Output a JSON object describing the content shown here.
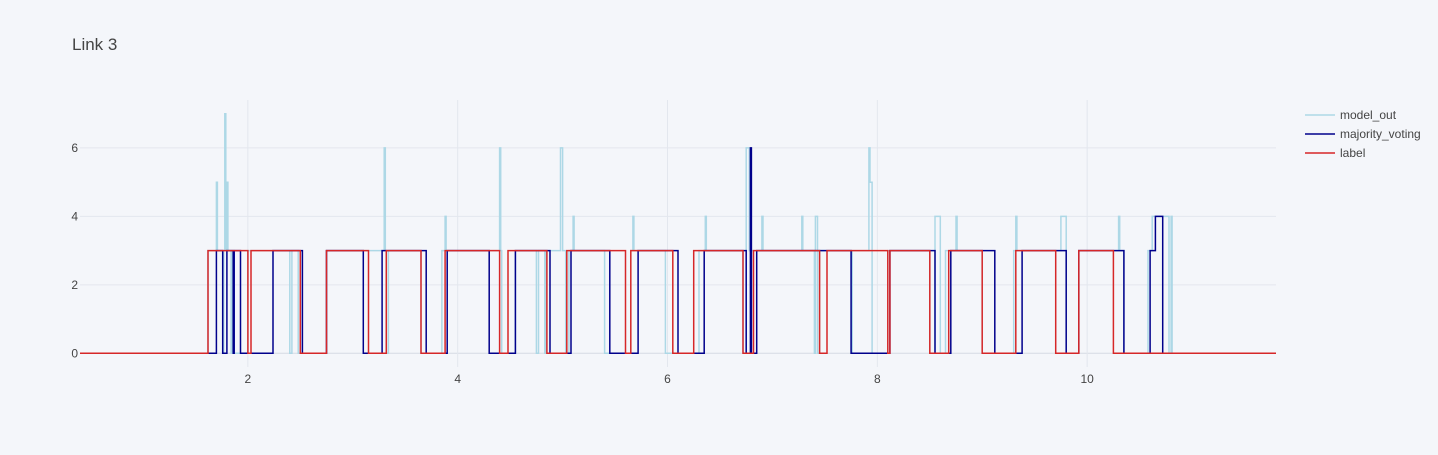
{
  "chart_data": {
    "type": "line",
    "title": "Link 3",
    "xlabel": "",
    "ylabel": "",
    "xlim": [
      0.4,
      11.8
    ],
    "ylim": [
      -0.4,
      7.4
    ],
    "x_ticks": [
      2,
      4,
      6,
      8,
      10
    ],
    "y_ticks": [
      0,
      2,
      4,
      6
    ],
    "grid": true,
    "legend": "top-right",
    "series": [
      {
        "name": "model_out",
        "color": "#add8e6",
        "points": [
          [
            0.4,
            0
          ],
          [
            1.62,
            0
          ],
          [
            1.62,
            3
          ],
          [
            1.7,
            3
          ],
          [
            1.7,
            5
          ],
          [
            1.71,
            5
          ],
          [
            1.71,
            3
          ],
          [
            1.76,
            3
          ],
          [
            1.76,
            0
          ],
          [
            1.77,
            0
          ],
          [
            1.77,
            3
          ],
          [
            1.78,
            3
          ],
          [
            1.78,
            7
          ],
          [
            1.79,
            7
          ],
          [
            1.79,
            3
          ],
          [
            1.8,
            3
          ],
          [
            1.8,
            5
          ],
          [
            1.81,
            5
          ],
          [
            1.81,
            3
          ],
          [
            1.84,
            3
          ],
          [
            1.84,
            0
          ],
          [
            1.85,
            0
          ],
          [
            1.85,
            3
          ],
          [
            1.87,
            3
          ],
          [
            1.87,
            0
          ],
          [
            2.0,
            0
          ],
          [
            2.0,
            3
          ],
          [
            2.4,
            3
          ],
          [
            2.4,
            0
          ],
          [
            2.42,
            0
          ],
          [
            2.42,
            3
          ],
          [
            2.48,
            3
          ],
          [
            2.48,
            0
          ],
          [
            2.75,
            0
          ],
          [
            2.75,
            3
          ],
          [
            3.3,
            3
          ],
          [
            3.3,
            6
          ],
          [
            3.31,
            6
          ],
          [
            3.31,
            3
          ],
          [
            3.32,
            3
          ],
          [
            3.32,
            0
          ],
          [
            3.34,
            0
          ],
          [
            3.34,
            3
          ],
          [
            3.65,
            3
          ],
          [
            3.65,
            0
          ],
          [
            3.85,
            0
          ],
          [
            3.85,
            3
          ],
          [
            3.88,
            3
          ],
          [
            3.88,
            4
          ],
          [
            3.89,
            4
          ],
          [
            3.89,
            3
          ],
          [
            4.4,
            3
          ],
          [
            4.4,
            6
          ],
          [
            4.41,
            6
          ],
          [
            4.41,
            3
          ],
          [
            4.42,
            3
          ],
          [
            4.42,
            0
          ],
          [
            4.55,
            0
          ],
          [
            4.55,
            3
          ],
          [
            4.75,
            3
          ],
          [
            4.75,
            0
          ],
          [
            4.77,
            0
          ],
          [
            4.77,
            3
          ],
          [
            4.83,
            3
          ],
          [
            4.83,
            0
          ],
          [
            4.84,
            0
          ],
          [
            4.84,
            3
          ],
          [
            4.98,
            3
          ],
          [
            4.98,
            6
          ],
          [
            5.0,
            6
          ],
          [
            5.0,
            3
          ],
          [
            5.03,
            3
          ],
          [
            5.03,
            0
          ],
          [
            5.06,
            0
          ],
          [
            5.06,
            3
          ],
          [
            5.1,
            3
          ],
          [
            5.1,
            4
          ],
          [
            5.11,
            4
          ],
          [
            5.11,
            3
          ],
          [
            5.4,
            3
          ],
          [
            5.4,
            0
          ],
          [
            5.65,
            0
          ],
          [
            5.65,
            3
          ],
          [
            5.67,
            3
          ],
          [
            5.67,
            4
          ],
          [
            5.68,
            4
          ],
          [
            5.68,
            3
          ],
          [
            5.98,
            3
          ],
          [
            5.98,
            0
          ],
          [
            6.3,
            0
          ],
          [
            6.3,
            3
          ],
          [
            6.36,
            3
          ],
          [
            6.36,
            4
          ],
          [
            6.37,
            4
          ],
          [
            6.37,
            3
          ],
          [
            6.72,
            3
          ],
          [
            6.72,
            0
          ],
          [
            6.75,
            0
          ],
          [
            6.75,
            6
          ],
          [
            6.78,
            6
          ],
          [
            6.78,
            3
          ],
          [
            6.9,
            3
          ],
          [
            6.9,
            4
          ],
          [
            6.91,
            4
          ],
          [
            6.91,
            3
          ],
          [
            7.28,
            3
          ],
          [
            7.28,
            4
          ],
          [
            7.29,
            4
          ],
          [
            7.29,
            3
          ],
          [
            7.4,
            3
          ],
          [
            7.4,
            0
          ],
          [
            7.41,
            0
          ],
          [
            7.41,
            4
          ],
          [
            7.43,
            4
          ],
          [
            7.43,
            0
          ],
          [
            7.45,
            0
          ],
          [
            7.45,
            3
          ],
          [
            7.75,
            3
          ],
          [
            7.75,
            0
          ],
          [
            7.76,
            0
          ],
          [
            7.76,
            3
          ],
          [
            7.92,
            3
          ],
          [
            7.92,
            6
          ],
          [
            7.93,
            6
          ],
          [
            7.93,
            5
          ],
          [
            7.95,
            5
          ],
          [
            7.95,
            0
          ],
          [
            8.1,
            0
          ],
          [
            8.1,
            3
          ],
          [
            8.5,
            3
          ],
          [
            8.5,
            0
          ],
          [
            8.55,
            0
          ],
          [
            8.55,
            4
          ],
          [
            8.6,
            4
          ],
          [
            8.6,
            0
          ],
          [
            8.65,
            0
          ],
          [
            8.65,
            3
          ],
          [
            8.75,
            3
          ],
          [
            8.75,
            4
          ],
          [
            8.76,
            4
          ],
          [
            8.76,
            3
          ],
          [
            9.0,
            3
          ],
          [
            9.0,
            0
          ],
          [
            9.3,
            0
          ],
          [
            9.3,
            3
          ],
          [
            9.32,
            3
          ],
          [
            9.32,
            4
          ],
          [
            9.33,
            4
          ],
          [
            9.33,
            3
          ],
          [
            9.75,
            3
          ],
          [
            9.75,
            4
          ],
          [
            9.8,
            4
          ],
          [
            9.8,
            0
          ],
          [
            9.92,
            0
          ],
          [
            9.92,
            3
          ],
          [
            10.3,
            3
          ],
          [
            10.3,
            4
          ],
          [
            10.31,
            4
          ],
          [
            10.31,
            3
          ],
          [
            10.35,
            3
          ],
          [
            10.35,
            0
          ],
          [
            10.58,
            0
          ],
          [
            10.58,
            3
          ],
          [
            10.62,
            3
          ],
          [
            10.62,
            4
          ],
          [
            10.78,
            4
          ],
          [
            10.78,
            0
          ],
          [
            10.8,
            0
          ],
          [
            10.8,
            4
          ],
          [
            10.81,
            4
          ],
          [
            10.81,
            0
          ],
          [
            11.8,
            0
          ]
        ]
      },
      {
        "name": "majority_voting",
        "color": "#00008b",
        "points": [
          [
            0.4,
            0
          ],
          [
            1.7,
            0
          ],
          [
            1.7,
            3
          ],
          [
            1.76,
            3
          ],
          [
            1.76,
            0
          ],
          [
            1.8,
            0
          ],
          [
            1.8,
            3
          ],
          [
            1.86,
            3
          ],
          [
            1.86,
            0
          ],
          [
            1.87,
            0
          ],
          [
            1.87,
            3
          ],
          [
            1.93,
            3
          ],
          [
            1.93,
            0
          ],
          [
            2.24,
            0
          ],
          [
            2.24,
            3
          ],
          [
            2.52,
            3
          ],
          [
            2.52,
            0
          ],
          [
            2.75,
            0
          ],
          [
            2.75,
            3
          ],
          [
            3.1,
            3
          ],
          [
            3.1,
            0
          ],
          [
            3.28,
            0
          ],
          [
            3.28,
            3
          ],
          [
            3.7,
            3
          ],
          [
            3.7,
            0
          ],
          [
            3.9,
            0
          ],
          [
            3.9,
            3
          ],
          [
            4.3,
            3
          ],
          [
            4.3,
            0
          ],
          [
            4.55,
            0
          ],
          [
            4.55,
            3
          ],
          [
            4.88,
            3
          ],
          [
            4.88,
            0
          ],
          [
            5.08,
            0
          ],
          [
            5.08,
            3
          ],
          [
            5.45,
            3
          ],
          [
            5.45,
            0
          ],
          [
            5.72,
            0
          ],
          [
            5.72,
            3
          ],
          [
            6.1,
            3
          ],
          [
            6.1,
            0
          ],
          [
            6.35,
            0
          ],
          [
            6.35,
            3
          ],
          [
            6.75,
            3
          ],
          [
            6.75,
            0
          ],
          [
            6.79,
            0
          ],
          [
            6.79,
            6
          ],
          [
            6.8,
            6
          ],
          [
            6.8,
            0
          ],
          [
            6.85,
            0
          ],
          [
            6.85,
            3
          ],
          [
            7.75,
            3
          ],
          [
            7.75,
            0
          ],
          [
            8.12,
            0
          ],
          [
            8.12,
            3
          ],
          [
            8.55,
            3
          ],
          [
            8.55,
            0
          ],
          [
            8.7,
            0
          ],
          [
            8.7,
            3
          ],
          [
            9.12,
            3
          ],
          [
            9.12,
            0
          ],
          [
            9.38,
            0
          ],
          [
            9.38,
            3
          ],
          [
            9.8,
            3
          ],
          [
            9.8,
            0
          ],
          [
            9.92,
            0
          ],
          [
            9.92,
            3
          ],
          [
            10.35,
            3
          ],
          [
            10.35,
            0
          ],
          [
            10.6,
            0
          ],
          [
            10.6,
            3
          ],
          [
            10.65,
            3
          ],
          [
            10.65,
            4
          ],
          [
            10.72,
            4
          ],
          [
            10.72,
            0
          ],
          [
            11.8,
            0
          ]
        ]
      },
      {
        "name": "label",
        "color": "#d62728",
        "points": [
          [
            0.4,
            0
          ],
          [
            1.62,
            0
          ],
          [
            1.62,
            3
          ],
          [
            2.0,
            3
          ],
          [
            2.0,
            0
          ],
          [
            2.03,
            0
          ],
          [
            2.03,
            3
          ],
          [
            2.5,
            3
          ],
          [
            2.5,
            0
          ],
          [
            2.75,
            0
          ],
          [
            2.75,
            3
          ],
          [
            3.15,
            3
          ],
          [
            3.15,
            0
          ],
          [
            3.32,
            0
          ],
          [
            3.32,
            3
          ],
          [
            3.65,
            3
          ],
          [
            3.65,
            0
          ],
          [
            3.88,
            0
          ],
          [
            3.88,
            3
          ],
          [
            4.4,
            3
          ],
          [
            4.4,
            0
          ],
          [
            4.48,
            0
          ],
          [
            4.48,
            3
          ],
          [
            4.85,
            3
          ],
          [
            4.85,
            0
          ],
          [
            5.04,
            0
          ],
          [
            5.04,
            3
          ],
          [
            5.6,
            3
          ],
          [
            5.6,
            0
          ],
          [
            5.65,
            0
          ],
          [
            5.65,
            3
          ],
          [
            6.05,
            3
          ],
          [
            6.05,
            0
          ],
          [
            6.25,
            0
          ],
          [
            6.25,
            3
          ],
          [
            6.72,
            3
          ],
          [
            6.72,
            0
          ],
          [
            6.82,
            0
          ],
          [
            6.82,
            3
          ],
          [
            7.45,
            3
          ],
          [
            7.45,
            0
          ],
          [
            7.52,
            0
          ],
          [
            7.52,
            3
          ],
          [
            8.1,
            3
          ],
          [
            8.1,
            0
          ],
          [
            8.12,
            0
          ],
          [
            8.12,
            3
          ],
          [
            8.5,
            3
          ],
          [
            8.5,
            0
          ],
          [
            8.68,
            0
          ],
          [
            8.68,
            3
          ],
          [
            9.0,
            3
          ],
          [
            9.0,
            0
          ],
          [
            9.32,
            0
          ],
          [
            9.32,
            3
          ],
          [
            9.7,
            3
          ],
          [
            9.7,
            0
          ],
          [
            9.92,
            0
          ],
          [
            9.92,
            3
          ],
          [
            10.25,
            3
          ],
          [
            10.25,
            0
          ],
          [
            11.8,
            0
          ]
        ]
      }
    ]
  }
}
